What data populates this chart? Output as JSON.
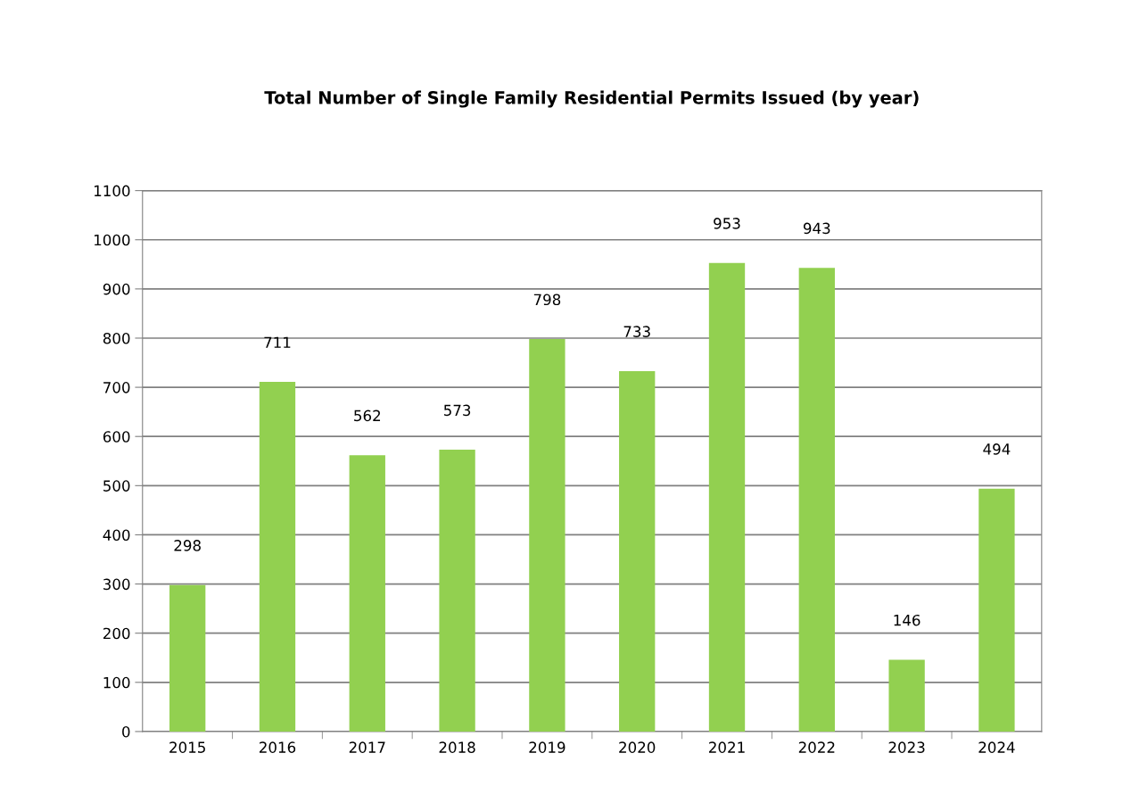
{
  "chart_data": {
    "type": "bar",
    "title": "Total Number of Single Family Residential Permits Issued (by year)",
    "categories": [
      "2015",
      "2016",
      "2017",
      "2018",
      "2019",
      "2020",
      "2021",
      "2022",
      "2023",
      "2024"
    ],
    "values": [
      298,
      711,
      562,
      573,
      798,
      733,
      953,
      943,
      146,
      494
    ],
    "color": "#92d050",
    "ylim": [
      0,
      1100
    ],
    "yticks": [
      0,
      100,
      200,
      300,
      400,
      500,
      600,
      700,
      800,
      900,
      1000,
      1100
    ],
    "grid": "y",
    "data_labels": true,
    "legend": false
  }
}
